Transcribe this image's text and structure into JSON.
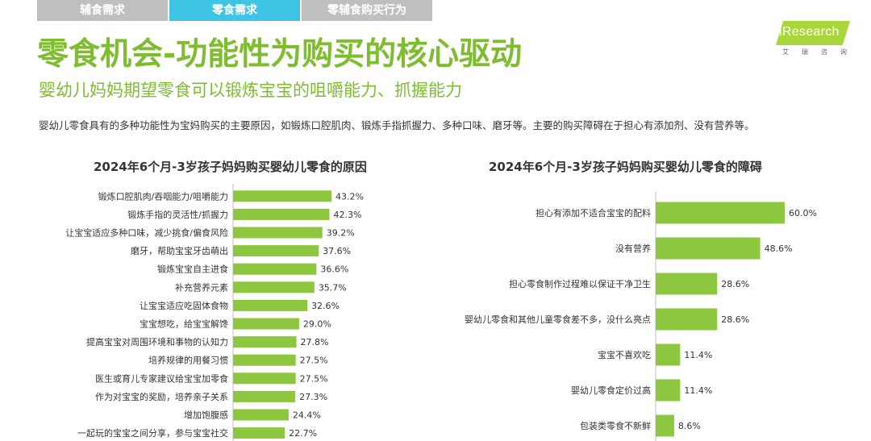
{
  "tabs": [
    {
      "label": "辅食需求",
      "active": false
    },
    {
      "label": "零食需求",
      "active": true
    },
    {
      "label": "零辅食购买行为",
      "active": false
    }
  ],
  "logo": {
    "name": "iResearch",
    "sub": [
      "艾",
      "瑞",
      "咨",
      "询"
    ]
  },
  "header": {
    "title": "零食机会-功能性为购买的核心驱动",
    "subtitle": "婴幼儿妈妈期望零食可以锻炼宝宝的咀嚼能力、抓握能力",
    "description": "婴幼儿零食具有的多种功能性为宝妈购买的主要原因，如锻炼口腔肌肉、锻炼手指抓握力、多种口味、磨牙等。主要的购买障碍在于担心有添加剂、没有营养等。"
  },
  "colors": {
    "accent": "#7ebd2e",
    "bar": "#8dc63f",
    "tab_active": "#3ec5e6",
    "tab_inactive": "#bfbfbf"
  },
  "chart_data": [
    {
      "type": "bar",
      "orientation": "horizontal",
      "title": "2024年6个月-3岁孩子妈妈购买婴幼儿零食的原因",
      "categories": [
        "锻炼口腔肌肉/吞咽能力/咀嚼能力",
        "锻炼手指的灵活性/抓握力",
        "让宝宝适应多种口味，减少挑食/偏食风险",
        "磨牙，帮助宝宝牙齿萌出",
        "锻炼宝宝自主进食",
        "补充营养元素",
        "让宝宝适应吃固体食物",
        "宝宝想吃，给宝宝解馋",
        "提高宝宝对周围环境和事物的认知力",
        "培养规律的用餐习惯",
        "医生或育儿专家建议给宝宝加零食",
        "作为对宝宝的奖励，培养亲子关系",
        "增加饱腹感",
        "一起玩的宝宝之间分享，参与宝宝社交"
      ],
      "values": [
        43.2,
        42.3,
        39.2,
        37.6,
        36.6,
        35.7,
        32.6,
        29.0,
        27.8,
        27.5,
        27.5,
        27.3,
        24.4,
        22.7
      ],
      "value_labels": [
        "43.2%",
        "42.3%",
        "39.2%",
        "37.6%",
        "36.6%",
        "35.7%",
        "32.6%",
        "29.0%",
        "27.8%",
        "27.5%",
        "27.5%",
        "27.3%",
        "24.4%",
        "22.7%"
      ],
      "unit": "%"
    },
    {
      "type": "bar",
      "orientation": "horizontal",
      "title": "2024年6个月-3岁孩子妈妈购买婴幼儿零食的障碍",
      "categories": [
        "担心有添加不适合宝宝的配料",
        "没有营养",
        "担心零食制作过程难以保证干净卫生",
        "婴幼儿零食和其他儿童零食差不多，没什么亮点",
        "宝宝不喜欢吃",
        "婴幼儿零食定价过高",
        "包装类零食不新鲜"
      ],
      "values": [
        60.0,
        48.6,
        28.6,
        28.6,
        11.4,
        11.4,
        8.6
      ],
      "value_labels": [
        "60.0%",
        "48.6%",
        "28.6%",
        "28.6%",
        "11.4%",
        "11.4%",
        "8.6%"
      ],
      "unit": "%"
    }
  ]
}
